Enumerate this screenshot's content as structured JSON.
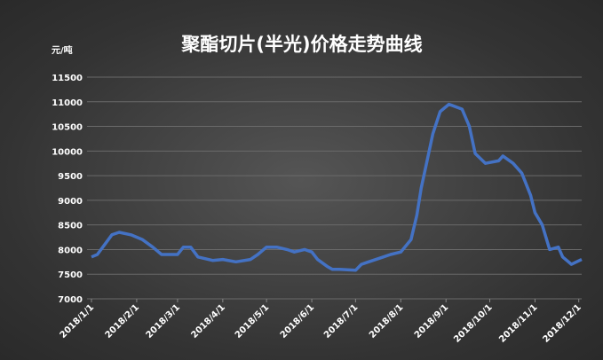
{
  "chart_data": {
    "type": "line",
    "title": "聚酯切片(半光)价格走势曲线",
    "y_label": "元/吨",
    "x": [
      "2018/1/1",
      "2018/1/5",
      "2018/1/10",
      "2018/1/15",
      "2018/1/20",
      "2018/1/28",
      "2018/2/5",
      "2018/2/12",
      "2018/2/18",
      "2018/2/25",
      "2018/3/1",
      "2018/3/5",
      "2018/3/10",
      "2018/3/15",
      "2018/3/25",
      "2018/4/1",
      "2018/4/10",
      "2018/4/20",
      "2018/4/25",
      "2018/5/1",
      "2018/5/8",
      "2018/5/15",
      "2018/5/20",
      "2018/5/27",
      "2018/6/1",
      "2018/6/5",
      "2018/6/12",
      "2018/6/15",
      "2018/6/20",
      "2018/7/1",
      "2018/7/5",
      "2018/7/10",
      "2018/7/20",
      "2018/7/25",
      "2018/8/1",
      "2018/8/8",
      "2018/8/12",
      "2018/8/15",
      "2018/8/19",
      "2018/8/23",
      "2018/8/28",
      "2018/9/3",
      "2018/9/12",
      "2018/9/17",
      "2018/9/21",
      "2018/9/28",
      "2018/10/7",
      "2018/10/10",
      "2018/10/17",
      "2018/10/23",
      "2018/10/29",
      "2018/11/1",
      "2018/11/6",
      "2018/11/11",
      "2018/11/17",
      "2018/11/20",
      "2018/11/26",
      "2018/12/3"
    ],
    "series": [
      {
        "name": "聚酯切片(半光)",
        "color": "#4472c4",
        "values": [
          7850,
          7900,
          8100,
          8300,
          8350,
          8300,
          8200,
          8050,
          7900,
          7900,
          7900,
          8050,
          8050,
          7850,
          7780,
          7800,
          7750,
          7800,
          7900,
          8050,
          8050,
          8000,
          7950,
          8000,
          7950,
          7800,
          7650,
          7600,
          7600,
          7580,
          7700,
          7750,
          7850,
          7900,
          7950,
          8200,
          8700,
          9250,
          9800,
          10350,
          10800,
          10950,
          10850,
          10500,
          9950,
          9750,
          9800,
          9900,
          9750,
          9550,
          9100,
          8750,
          8500,
          8000,
          8050,
          7850,
          7700,
          7800
        ]
      }
    ],
    "xlim": [
      "2018/1/1",
      "2018/12/3"
    ],
    "xticks": [
      "2018/1/1",
      "2018/2/1",
      "2018/3/1",
      "2018/4/1",
      "2018/5/1",
      "2018/6/1",
      "2018/7/1",
      "2018/8/1",
      "2018/9/1",
      "2018/10/1",
      "2018/11/1",
      "2018/12/1"
    ],
    "ylim": [
      7000,
      11500
    ],
    "yticks": [
      7000,
      7500,
      8000,
      8500,
      9000,
      9500,
      10000,
      10500,
      11000,
      11500
    ],
    "grid": true
  }
}
